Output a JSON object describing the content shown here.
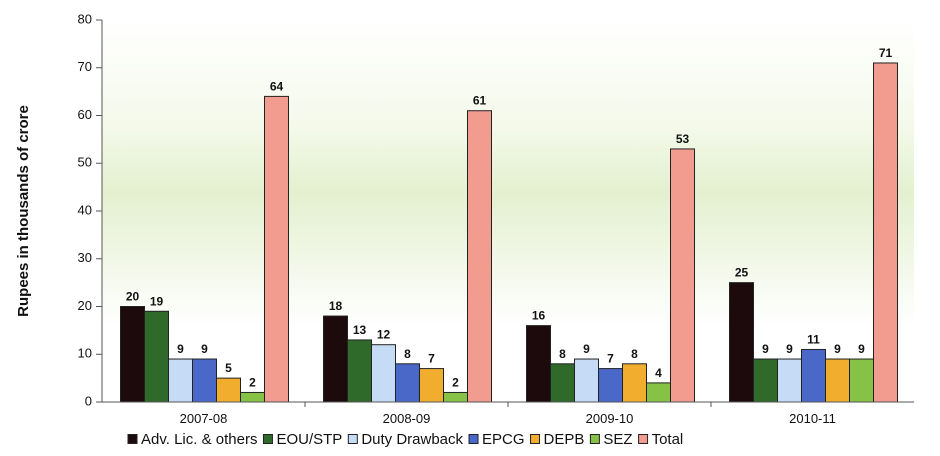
{
  "chart_data": {
    "type": "bar",
    "title": "",
    "xlabel": "",
    "ylabel": "Rupees in thousands of crore",
    "ylim": [
      0,
      80
    ],
    "y_ticks": [
      0,
      10,
      20,
      30,
      40,
      50,
      60,
      70,
      80
    ],
    "grid": false,
    "legend_position": "bottom",
    "categories": [
      "2007-08",
      "2008-09",
      "2009-10",
      "2010-11"
    ],
    "series": [
      {
        "name": "Adv. Lic. & others",
        "color": "#1c0a0c",
        "values": [
          20,
          18,
          16,
          25
        ],
        "labels": [
          "20",
          "18",
          "16",
          "25"
        ]
      },
      {
        "name": "EOU/STP",
        "color": "#2f6a2b",
        "values": [
          19,
          13,
          8,
          9
        ],
        "labels": [
          "19",
          "13",
          "8",
          "9"
        ]
      },
      {
        "name": "Duty Drawback",
        "color": "#c6dcf6",
        "values": [
          9,
          12,
          9,
          9
        ],
        "labels": [
          "9",
          "12",
          "9",
          "9"
        ]
      },
      {
        "name": "EPCG",
        "color": "#4968c8",
        "values": [
          9,
          8,
          7,
          11
        ],
        "labels": [
          "9",
          "8",
          "7",
          "11"
        ]
      },
      {
        "name": "DEPB",
        "color": "#f1ad2e",
        "values": [
          5,
          7,
          8,
          9
        ],
        "labels": [
          "5",
          "7",
          "8",
          "9"
        ]
      },
      {
        "name": "SEZ",
        "color": "#86c246",
        "values": [
          2,
          2,
          4,
          9
        ],
        "labels": [
          "2",
          "2",
          "4",
          "9"
        ]
      },
      {
        "name": "Total",
        "color": "#f29b8f",
        "values": [
          64,
          61,
          53,
          71
        ],
        "labels": [
          "64",
          "61",
          "53",
          "71"
        ]
      }
    ]
  }
}
